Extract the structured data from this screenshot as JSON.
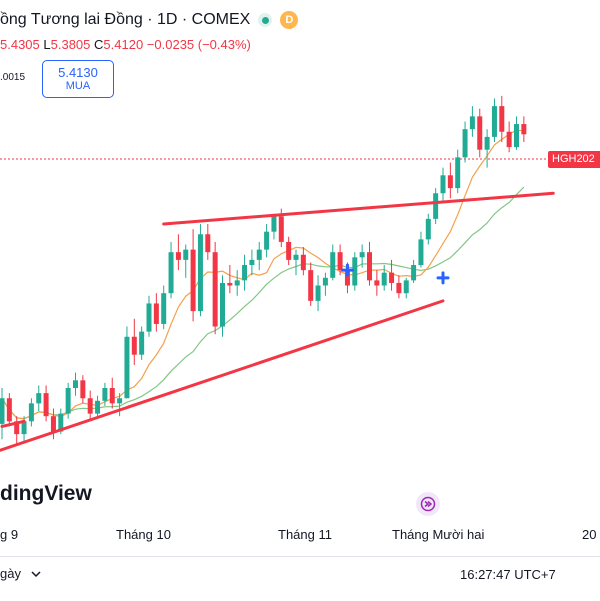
{
  "header": {
    "title": "ồng Tương lai Đồng · 1D · COMEX",
    "badge_letter": "D",
    "ohlc": {
      "o": "5.4305",
      "h_label": "L",
      "h": "5.3805",
      "c_label": "C",
      "c": "5.4120",
      "change": "−0.0235 (−0.43%)"
    },
    "spread": ".0015"
  },
  "buy_button": {
    "price": "5.4130",
    "label": "MUA"
  },
  "symbol_tag": "HGH202",
  "logo_text": "dingView",
  "x_ticks": [
    "g 9",
    "Tháng 10",
    "Tháng 11",
    "Tháng Mười hai",
    "20"
  ],
  "bottom": {
    "range": "gày",
    "time": "16:27:47 UTC+7"
  },
  "colors": {
    "up": "#22ab94",
    "down": "#f23645",
    "trend": "#f23645",
    "ma_fast": "#f5a04a",
    "ma_slow": "#81c784",
    "accent": "#2962ff"
  },
  "chart_data": {
    "type": "candlestick",
    "ylim": [
      4.1,
      5.7
    ],
    "candles": [
      [
        4.28,
        4.42,
        4.22,
        4.38
      ],
      [
        4.38,
        4.4,
        4.27,
        4.29
      ],
      [
        4.29,
        4.31,
        4.2,
        4.24
      ],
      [
        4.24,
        4.31,
        4.21,
        4.29
      ],
      [
        4.29,
        4.38,
        4.27,
        4.36
      ],
      [
        4.36,
        4.43,
        4.33,
        4.4
      ],
      [
        4.4,
        4.43,
        4.29,
        4.31
      ],
      [
        4.31,
        4.34,
        4.22,
        4.25
      ],
      [
        4.25,
        4.34,
        4.24,
        4.32
      ],
      [
        4.32,
        4.44,
        4.3,
        4.42
      ],
      [
        4.42,
        4.48,
        4.39,
        4.45
      ],
      [
        4.45,
        4.47,
        4.36,
        4.38
      ],
      [
        4.38,
        4.41,
        4.3,
        4.32
      ],
      [
        4.32,
        4.39,
        4.31,
        4.37
      ],
      [
        4.37,
        4.44,
        4.35,
        4.42
      ],
      [
        4.42,
        4.46,
        4.34,
        4.36
      ],
      [
        4.36,
        4.4,
        4.31,
        4.38
      ],
      [
        4.38,
        4.66,
        4.38,
        4.62
      ],
      [
        4.62,
        4.69,
        4.51,
        4.55
      ],
      [
        4.55,
        4.66,
        4.53,
        4.64
      ],
      [
        4.64,
        4.78,
        4.62,
        4.75
      ],
      [
        4.75,
        4.79,
        4.64,
        4.67
      ],
      [
        4.67,
        4.82,
        4.65,
        4.79
      ],
      [
        4.79,
        4.99,
        4.77,
        4.95
      ],
      [
        4.95,
        5.02,
        4.88,
        4.92
      ],
      [
        4.92,
        4.98,
        4.85,
        4.96
      ],
      [
        4.96,
        5.04,
        4.68,
        4.72
      ],
      [
        4.72,
        5.06,
        4.7,
        5.02
      ],
      [
        5.02,
        5.06,
        4.92,
        4.95
      ],
      [
        4.95,
        4.99,
        4.63,
        4.66
      ],
      [
        4.66,
        4.86,
        4.62,
        4.83
      ],
      [
        4.83,
        4.9,
        4.79,
        4.82
      ],
      [
        4.82,
        4.88,
        4.78,
        4.84
      ],
      [
        4.84,
        4.94,
        4.8,
        4.9
      ],
      [
        4.9,
        4.96,
        4.86,
        4.92
      ],
      [
        4.92,
        4.99,
        4.88,
        4.96
      ],
      [
        4.96,
        5.06,
        4.93,
        5.03
      ],
      [
        5.03,
        5.1,
        5.0,
        5.09
      ],
      [
        5.09,
        5.12,
        4.97,
        4.99
      ],
      [
        4.99,
        5.01,
        4.9,
        4.92
      ],
      [
        4.92,
        4.96,
        4.86,
        4.94
      ],
      [
        4.94,
        4.97,
        4.86,
        4.88
      ],
      [
        4.88,
        4.91,
        4.74,
        4.76
      ],
      [
        4.76,
        4.86,
        4.72,
        4.82
      ],
      [
        4.82,
        4.87,
        4.78,
        4.85
      ],
      [
        4.85,
        4.98,
        4.84,
        4.95
      ],
      [
        4.95,
        4.98,
        4.86,
        4.88
      ],
      [
        4.88,
        4.91,
        4.79,
        4.82
      ],
      [
        4.82,
        4.95,
        4.8,
        4.93
      ],
      [
        4.93,
        4.98,
        4.89,
        4.95
      ],
      [
        4.95,
        4.99,
        4.82,
        4.84
      ],
      [
        4.84,
        4.88,
        4.78,
        4.82
      ],
      [
        4.82,
        4.9,
        4.8,
        4.87
      ],
      [
        4.87,
        4.92,
        4.8,
        4.83
      ],
      [
        4.83,
        4.86,
        4.77,
        4.79
      ],
      [
        4.79,
        4.85,
        4.77,
        4.84
      ],
      [
        4.84,
        4.92,
        4.83,
        4.9
      ],
      [
        4.9,
        5.03,
        4.89,
        5.0
      ],
      [
        5.0,
        5.1,
        4.98,
        5.08
      ],
      [
        5.08,
        5.2,
        5.06,
        5.18
      ],
      [
        5.18,
        5.28,
        5.15,
        5.25
      ],
      [
        5.25,
        5.3,
        5.16,
        5.2
      ],
      [
        5.2,
        5.35,
        5.18,
        5.32
      ],
      [
        5.32,
        5.46,
        5.3,
        5.43
      ],
      [
        5.43,
        5.52,
        5.4,
        5.48
      ],
      [
        5.48,
        5.51,
        5.32,
        5.35
      ],
      [
        5.35,
        5.43,
        5.28,
        5.4
      ],
      [
        5.4,
        5.55,
        5.38,
        5.52
      ],
      [
        5.52,
        5.56,
        5.38,
        5.42
      ],
      [
        5.42,
        5.46,
        5.34,
        5.36
      ],
      [
        5.36,
        5.48,
        5.35,
        5.45
      ],
      [
        5.45,
        5.48,
        5.38,
        5.41
      ]
    ],
    "trendlines": [
      {
        "from": [
          -2,
          4.16
        ],
        "to": [
          60,
          4.76
        ]
      },
      {
        "from": [
          22,
          5.06
        ],
        "to": [
          75,
          5.18
        ]
      },
      {
        "from": [
          0,
          4.27
        ],
        "to": [
          3,
          4.29
        ]
      }
    ],
    "markers": [
      {
        "index": 47,
        "price": 4.88
      },
      {
        "index": 60,
        "price": 4.85
      }
    ],
    "last_price": 5.41
  }
}
